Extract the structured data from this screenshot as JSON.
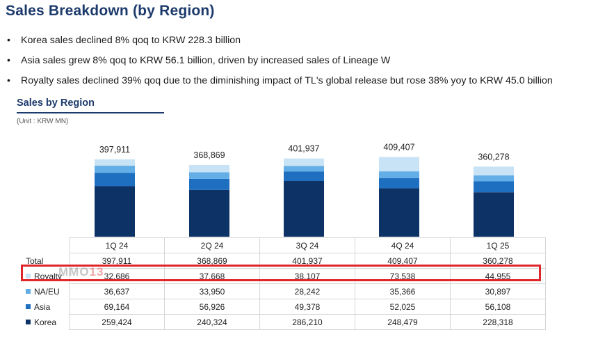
{
  "page": {
    "title": "Sales Breakdown (by Region)",
    "bullets": [
      "Korea sales declined 8% qoq to KRW 228.3 billion",
      "Asia sales grew 8% qoq to KRW 56.1 billion, driven by increased sales of Lineage W",
      "Royalty sales declined 39% qoq due to the diminishing impact of TL's global release but rose 38% yoy to KRW 45.0 billion"
    ],
    "chart_title": "Sales by Region",
    "unit": "(Unit : KRW MN)",
    "watermark": "MMO",
    "watermark_accent": "13"
  },
  "colors": {
    "korea": "#0d3266",
    "asia": "#1f6fc0",
    "na_eu": "#63aee6",
    "royalty": "#c8e3f5",
    "highlight": "#e0262b"
  },
  "chart_data": {
    "type": "bar",
    "stacked": true,
    "categories": [
      "1Q 24",
      "2Q 24",
      "3Q 24",
      "4Q 24",
      "1Q 25"
    ],
    "series": [
      {
        "name": "Korea",
        "values": [
          259424,
          240324,
          286210,
          248479,
          228318
        ]
      },
      {
        "name": "Asia",
        "values": [
          69164,
          56926,
          49378,
          52025,
          56108
        ]
      },
      {
        "name": "NA/EU",
        "values": [
          36637,
          33950,
          28242,
          35366,
          30897
        ]
      },
      {
        "name": "Royalty",
        "values": [
          32686,
          37668,
          38107,
          73538,
          44955
        ]
      }
    ],
    "totals": [
      397911,
      368869,
      401937,
      409407,
      360278
    ],
    "total_labels": [
      "397,911",
      "368,869",
      "401,937",
      "409,407",
      "360,278"
    ],
    "title": "Sales by Region",
    "unit": "(Unit : KRW MN)",
    "highlighted_series": "Royalty"
  },
  "table": {
    "header": [
      "1Q 24",
      "2Q 24",
      "3Q 24",
      "4Q 24",
      "1Q 25"
    ],
    "rows": [
      {
        "label": "Total",
        "values": [
          "397,911",
          "368,869",
          "401,937",
          "409,407",
          "360,278"
        ]
      },
      {
        "label": "Royalty",
        "values": [
          "32,686",
          "37,668",
          "38,107",
          "73,538",
          "44,955"
        ]
      },
      {
        "label": "NA/EU",
        "values": [
          "36,637",
          "33,950",
          "28,242",
          "35,366",
          "30,897"
        ]
      },
      {
        "label": "Asia",
        "values": [
          "69,164",
          "56,926",
          "49,378",
          "52,025",
          "56,108"
        ]
      },
      {
        "label": "Korea",
        "values": [
          "259,424",
          "240,324",
          "286,210",
          "248,479",
          "228,318"
        ]
      }
    ]
  }
}
